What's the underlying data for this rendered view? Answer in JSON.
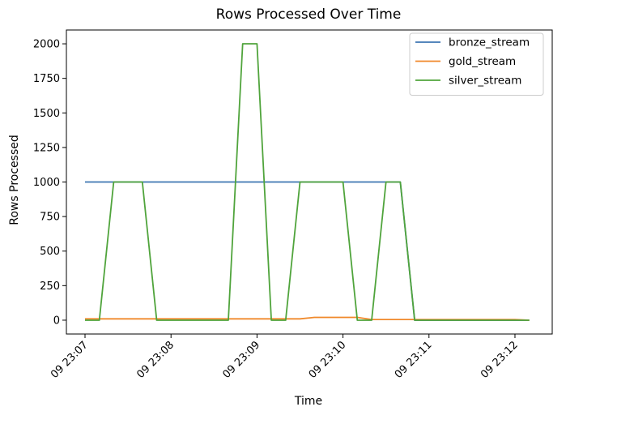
{
  "chart_data": {
    "type": "line",
    "title": "Rows Processed Over Time",
    "xlabel": "Time",
    "ylabel": "Rows Processed",
    "x": [
      "23:07:00",
      "23:07:10",
      "23:07:20",
      "23:07:30",
      "23:07:40",
      "23:07:50",
      "23:08:00",
      "23:08:10",
      "23:08:20",
      "23:08:30",
      "23:08:40",
      "23:08:50",
      "23:09:00",
      "23:09:10",
      "23:09:20",
      "23:09:30",
      "23:09:40",
      "23:09:50",
      "23:10:00",
      "23:10:10",
      "23:10:20",
      "23:10:30",
      "23:10:40",
      "23:10:50",
      "23:11:00",
      "23:11:10",
      "23:11:20",
      "23:11:30",
      "23:11:40",
      "23:11:50",
      "23:12:00",
      "23:12:10"
    ],
    "series": [
      {
        "name": "bronze_stream",
        "color": "#3e76b2",
        "values": [
          1000,
          1000,
          1000,
          1000,
          1000,
          1000,
          1000,
          1000,
          1000,
          1000,
          1000,
          1000,
          1000,
          1000,
          1000,
          1000,
          1000,
          1000,
          1000,
          1000,
          1000,
          1000,
          1000,
          0,
          0,
          0,
          0,
          0,
          0,
          0,
          0,
          0
        ]
      },
      {
        "name": "gold_stream",
        "color": "#f0892b",
        "values": [
          10,
          10,
          10,
          10,
          10,
          10,
          10,
          10,
          10,
          10,
          10,
          10,
          10,
          10,
          10,
          10,
          20,
          20,
          20,
          20,
          5,
          5,
          5,
          5,
          5,
          5,
          5,
          5,
          5,
          5,
          5,
          0
        ]
      },
      {
        "name": "silver_stream",
        "color": "#50a43c",
        "values": [
          0,
          0,
          1000,
          1000,
          1000,
          0,
          0,
          0,
          0,
          0,
          0,
          2000,
          2000,
          0,
          0,
          1000,
          1000,
          1000,
          1000,
          0,
          0,
          1000,
          1000,
          0,
          0,
          0,
          0,
          0,
          0,
          0,
          0,
          0
        ]
      }
    ],
    "x_ticks": [
      "09 23:07",
      "09 23:08",
      "09 23:09",
      "09 23:10",
      "09 23:11",
      "09 23:12"
    ],
    "y_ticks": [
      "0",
      "250",
      "500",
      "750",
      "1000",
      "1250",
      "1500",
      "1750",
      "2000"
    ],
    "xlim": [
      "23:06:47",
      "23:12:26"
    ],
    "ylim": [
      -100,
      2100
    ],
    "grid": false,
    "legend_position": "top-right"
  }
}
